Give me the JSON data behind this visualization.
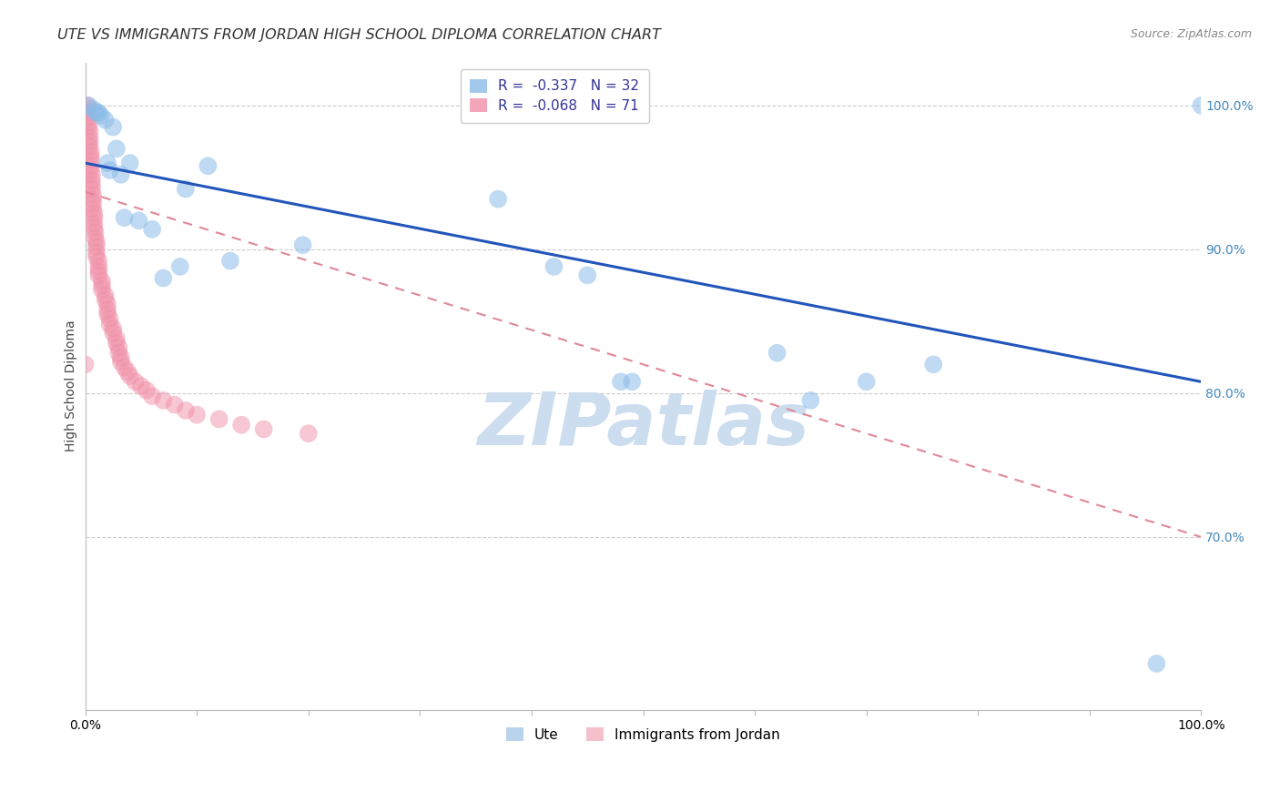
{
  "title": "UTE VS IMMIGRANTS FROM JORDAN HIGH SCHOOL DIPLOMA CORRELATION CHART",
  "source": "Source: ZipAtlas.com",
  "ylabel": "High School Diploma",
  "watermark": "ZIPatlas",
  "legend_top": [
    {
      "label": "R =  -0.337   N = 32",
      "color": "#a8c8e8"
    },
    {
      "label": "R =  -0.068   N = 71",
      "color": "#f4b0c0"
    }
  ],
  "legend_bottom": [
    {
      "label": "Ute",
      "color": "#a8c8e8"
    },
    {
      "label": "Immigrants from Jordan",
      "color": "#f4b0c0"
    }
  ],
  "xlim": [
    0.0,
    1.0
  ],
  "ylim": [
    0.58,
    1.03
  ],
  "xticks": [
    0.0,
    0.1,
    0.2,
    0.3,
    0.4,
    0.5,
    0.6,
    0.7,
    0.8,
    0.9,
    1.0
  ],
  "yticks": [
    0.7,
    0.8,
    0.9,
    1.0
  ],
  "blue_scatter": [
    [
      0.003,
      1.0
    ],
    [
      0.008,
      0.997
    ],
    [
      0.01,
      0.995
    ],
    [
      0.012,
      0.995
    ],
    [
      0.014,
      0.993
    ],
    [
      0.018,
      0.99
    ],
    [
      0.02,
      0.96
    ],
    [
      0.022,
      0.955
    ],
    [
      0.025,
      0.985
    ],
    [
      0.028,
      0.97
    ],
    [
      0.032,
      0.952
    ],
    [
      0.035,
      0.922
    ],
    [
      0.04,
      0.96
    ],
    [
      0.048,
      0.92
    ],
    [
      0.06,
      0.914
    ],
    [
      0.07,
      0.88
    ],
    [
      0.085,
      0.888
    ],
    [
      0.09,
      0.942
    ],
    [
      0.11,
      0.958
    ],
    [
      0.13,
      0.892
    ],
    [
      0.195,
      0.903
    ],
    [
      0.37,
      0.935
    ],
    [
      0.42,
      0.888
    ],
    [
      0.45,
      0.882
    ],
    [
      0.48,
      0.808
    ],
    [
      0.49,
      0.808
    ],
    [
      0.62,
      0.828
    ],
    [
      0.65,
      0.795
    ],
    [
      0.7,
      0.808
    ],
    [
      0.76,
      0.82
    ],
    [
      0.96,
      0.612
    ],
    [
      1.0,
      1.0
    ]
  ],
  "pink_scatter": [
    [
      0.0,
      0.82
    ],
    [
      0.002,
      1.0
    ],
    [
      0.002,
      0.998
    ],
    [
      0.003,
      0.995
    ],
    [
      0.003,
      0.992
    ],
    [
      0.003,
      0.988
    ],
    [
      0.003,
      0.985
    ],
    [
      0.004,
      0.982
    ],
    [
      0.004,
      0.978
    ],
    [
      0.004,
      0.975
    ],
    [
      0.004,
      0.972
    ],
    [
      0.005,
      0.968
    ],
    [
      0.005,
      0.965
    ],
    [
      0.005,
      0.962
    ],
    [
      0.005,
      0.958
    ],
    [
      0.005,
      0.955
    ],
    [
      0.006,
      0.952
    ],
    [
      0.006,
      0.948
    ],
    [
      0.006,
      0.945
    ],
    [
      0.006,
      0.942
    ],
    [
      0.007,
      0.938
    ],
    [
      0.007,
      0.935
    ],
    [
      0.007,
      0.932
    ],
    [
      0.007,
      0.928
    ],
    [
      0.008,
      0.925
    ],
    [
      0.008,
      0.922
    ],
    [
      0.008,
      0.918
    ],
    [
      0.008,
      0.915
    ],
    [
      0.009,
      0.912
    ],
    [
      0.009,
      0.908
    ],
    [
      0.01,
      0.905
    ],
    [
      0.01,
      0.902
    ],
    [
      0.01,
      0.898
    ],
    [
      0.01,
      0.895
    ],
    [
      0.012,
      0.892
    ],
    [
      0.012,
      0.888
    ],
    [
      0.012,
      0.885
    ],
    [
      0.012,
      0.882
    ],
    [
      0.015,
      0.878
    ],
    [
      0.015,
      0.875
    ],
    [
      0.015,
      0.872
    ],
    [
      0.018,
      0.868
    ],
    [
      0.018,
      0.865
    ],
    [
      0.02,
      0.862
    ],
    [
      0.02,
      0.858
    ],
    [
      0.02,
      0.855
    ],
    [
      0.022,
      0.852
    ],
    [
      0.022,
      0.848
    ],
    [
      0.025,
      0.845
    ],
    [
      0.025,
      0.842
    ],
    [
      0.028,
      0.838
    ],
    [
      0.028,
      0.835
    ],
    [
      0.03,
      0.832
    ],
    [
      0.03,
      0.828
    ],
    [
      0.032,
      0.825
    ],
    [
      0.032,
      0.822
    ],
    [
      0.035,
      0.818
    ],
    [
      0.038,
      0.815
    ],
    [
      0.04,
      0.812
    ],
    [
      0.045,
      0.808
    ],
    [
      0.05,
      0.805
    ],
    [
      0.055,
      0.802
    ],
    [
      0.06,
      0.798
    ],
    [
      0.07,
      0.795
    ],
    [
      0.08,
      0.792
    ],
    [
      0.09,
      0.788
    ],
    [
      0.1,
      0.785
    ],
    [
      0.12,
      0.782
    ],
    [
      0.14,
      0.778
    ],
    [
      0.16,
      0.775
    ],
    [
      0.2,
      0.772
    ]
  ],
  "blue_line": [
    [
      0.0,
      0.96
    ],
    [
      1.0,
      0.808
    ]
  ],
  "pink_line": [
    [
      0.0,
      0.94
    ],
    [
      1.0,
      0.7
    ]
  ],
  "blue_color": "#8bbce8",
  "pink_color": "#f090a8",
  "blue_line_color": "#2255bb",
  "pink_line_color": "#e08898",
  "grid_color": "#cccccc",
  "background_color": "#ffffff",
  "title_fontsize": 11.5,
  "source_fontsize": 9,
  "label_fontsize": 10,
  "tick_fontsize": 9,
  "watermark_color": "#ccddf0",
  "watermark_fontsize": 58
}
